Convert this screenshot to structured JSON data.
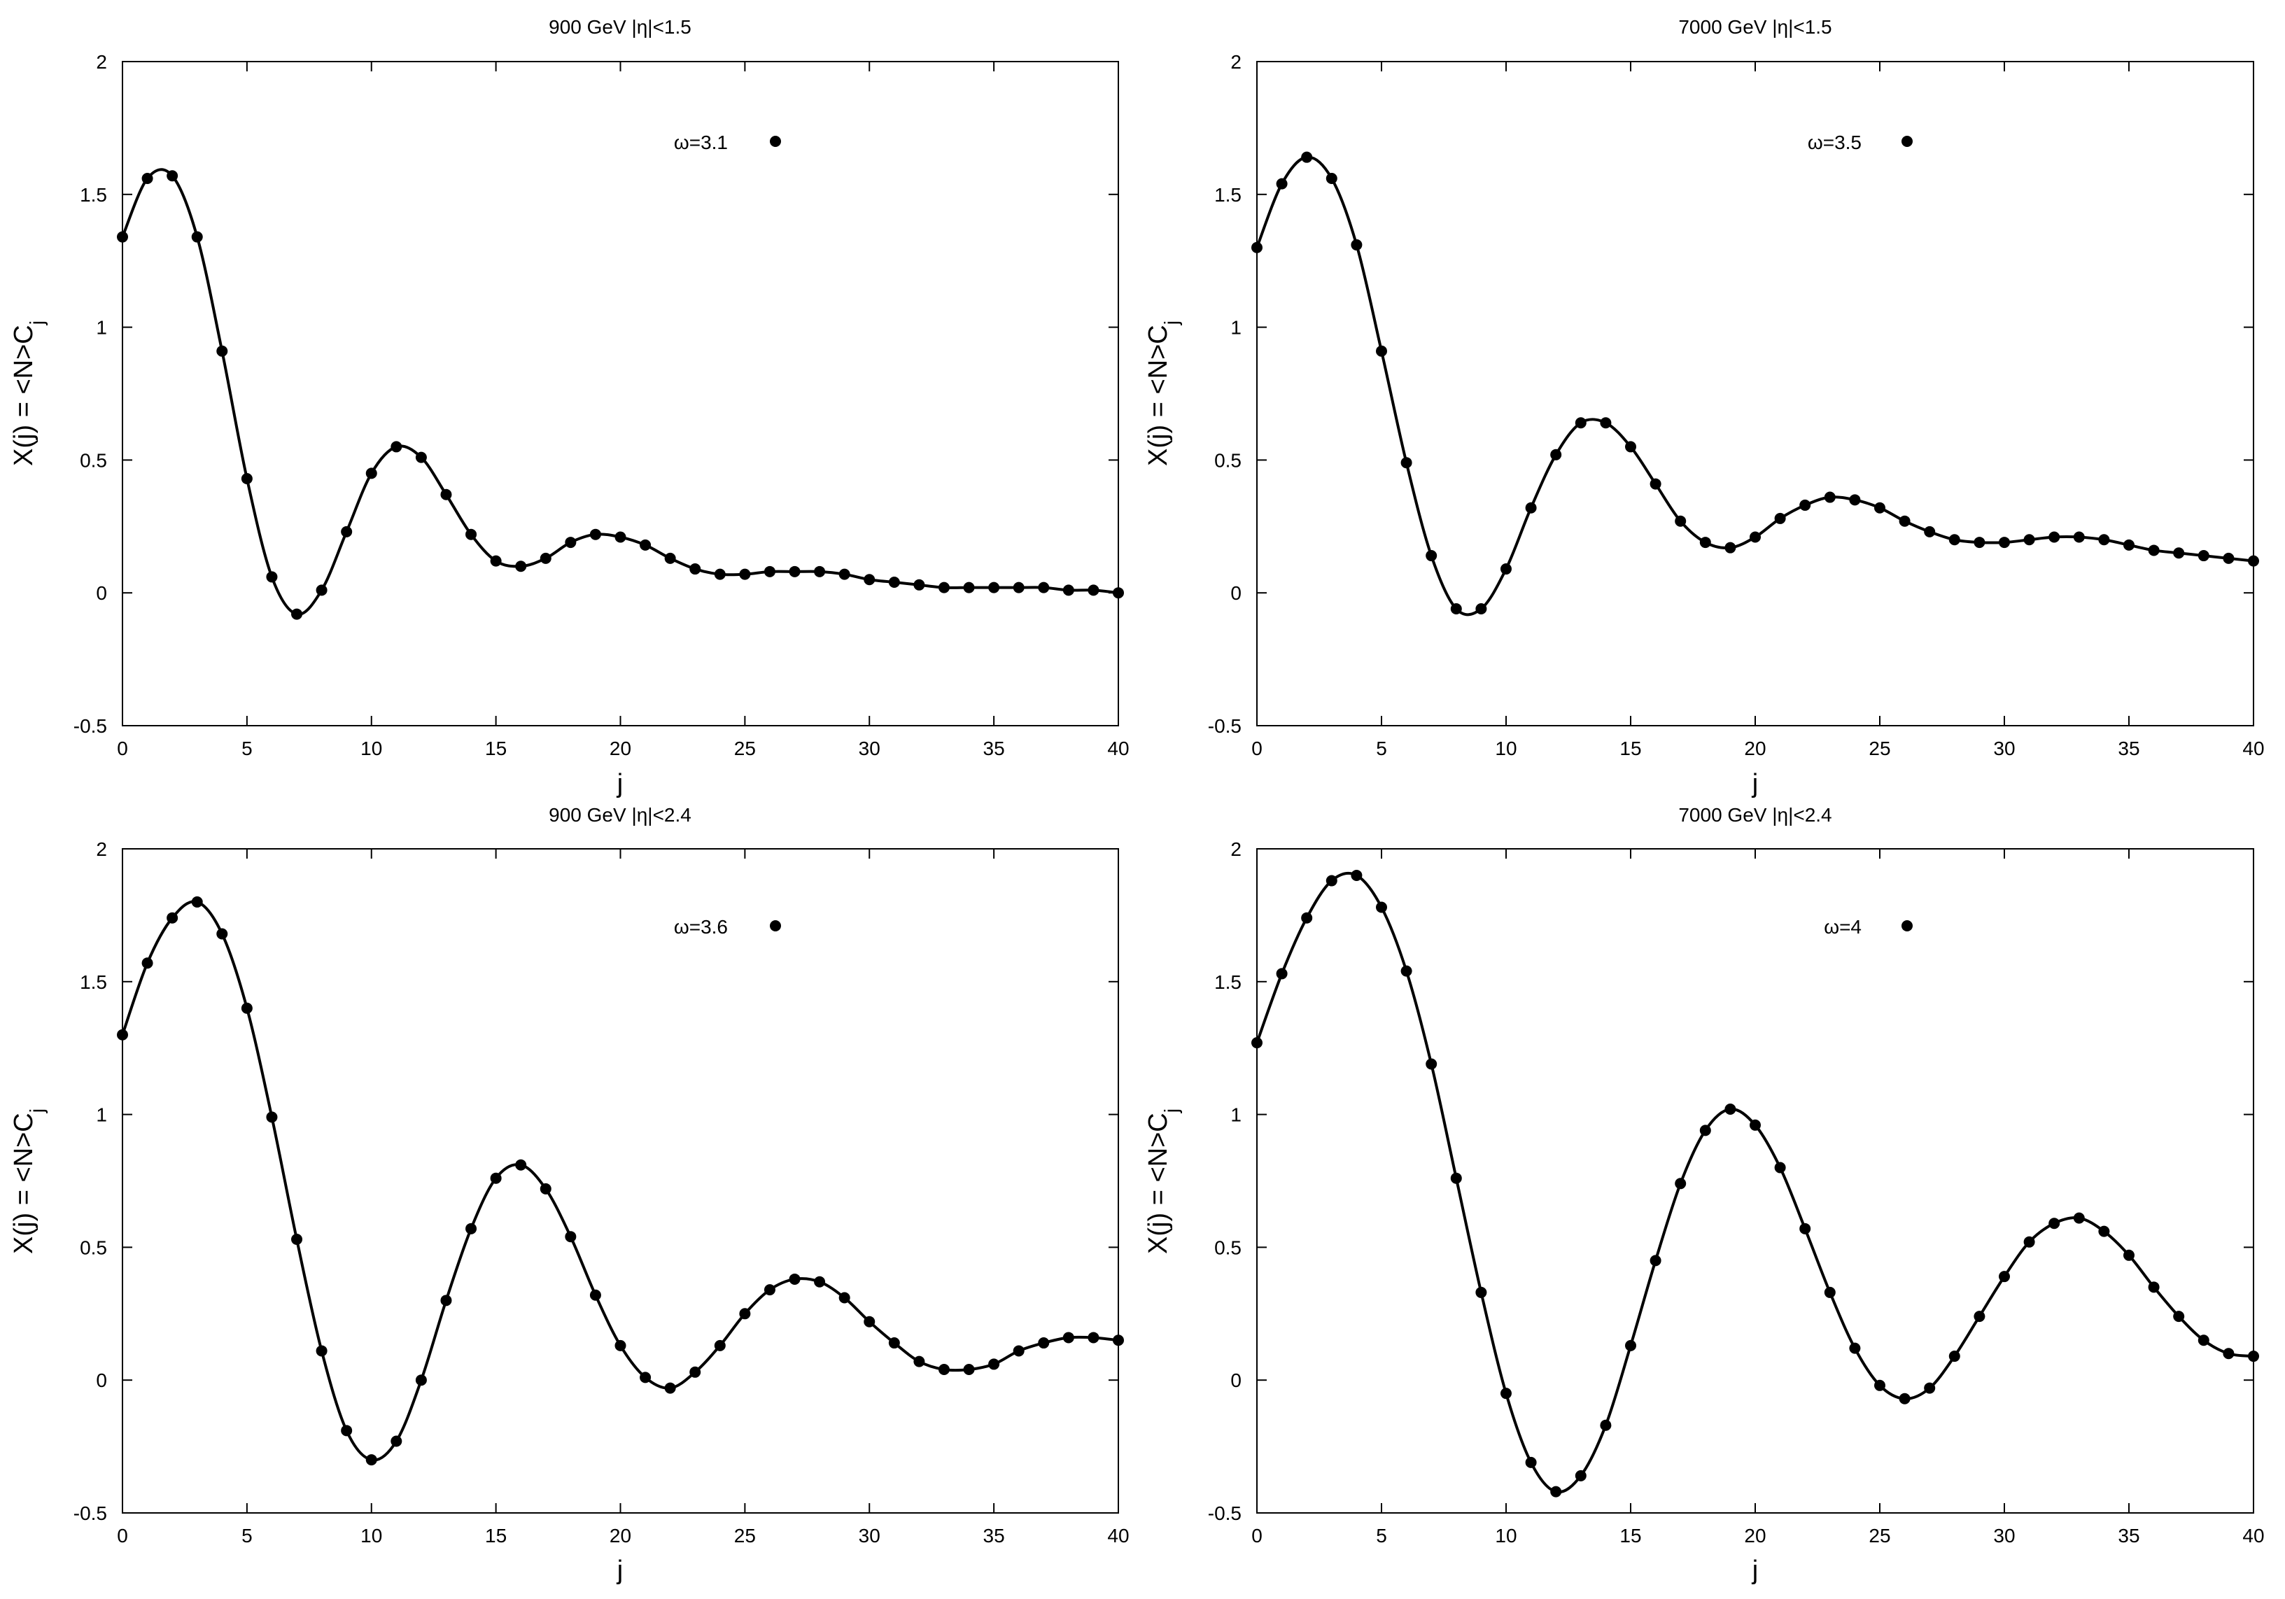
{
  "colors": {
    "curve": "#000000",
    "points": "#000000",
    "background": "#ffffff"
  },
  "chart_data": [
    {
      "type": "line",
      "title": "900 GeV    |η|<1.5",
      "xlabel": "j",
      "ylabel": "X(j) = <N>C_j",
      "xlim": [
        0,
        40
      ],
      "ylim": [
        -0.5,
        2
      ],
      "xticks": [
        "0",
        "5",
        "10",
        "15",
        "20",
        "25",
        "30",
        "35",
        "40"
      ],
      "yticks": [
        "-0.5",
        "0",
        "0.5",
        "1",
        "1.5",
        "2"
      ],
      "grid": false,
      "legend_position": "top-right",
      "series": [
        {
          "name": "ω=3.1",
          "x": [
            0,
            1,
            2,
            3,
            4,
            5,
            6,
            7,
            8,
            9,
            10,
            11,
            12,
            13,
            14,
            15,
            16,
            17,
            18,
            19,
            20,
            21,
            22,
            23,
            24,
            25,
            26,
            27,
            28,
            29,
            30,
            31,
            32,
            33,
            34,
            35,
            36,
            37,
            38,
            39,
            40
          ],
          "values": [
            1.34,
            1.56,
            1.57,
            1.34,
            0.91,
            0.43,
            0.06,
            -0.08,
            0.01,
            0.23,
            0.45,
            0.55,
            0.51,
            0.37,
            0.22,
            0.12,
            0.1,
            0.13,
            0.19,
            0.22,
            0.21,
            0.18,
            0.13,
            0.09,
            0.07,
            0.07,
            0.08,
            0.08,
            0.08,
            0.07,
            0.05,
            0.04,
            0.03,
            0.02,
            0.02,
            0.02,
            0.02,
            0.02,
            0.01,
            0.01,
            0.0
          ]
        }
      ]
    },
    {
      "type": "line",
      "title": "7000 GeV    |η|<1.5",
      "xlabel": "j",
      "ylabel": "X(j) = <N>C_j",
      "xlim": [
        0,
        40
      ],
      "ylim": [
        -0.5,
        2
      ],
      "xticks": [
        "0",
        "5",
        "10",
        "15",
        "20",
        "25",
        "30",
        "35",
        "40"
      ],
      "yticks": [
        "-0.5",
        "0",
        "0.5",
        "1",
        "1.5",
        "2"
      ],
      "grid": false,
      "legend_position": "top-right",
      "series": [
        {
          "name": "ω=3.5",
          "x": [
            0,
            1,
            2,
            3,
            4,
            5,
            6,
            7,
            8,
            9,
            10,
            11,
            12,
            13,
            14,
            15,
            16,
            17,
            18,
            19,
            20,
            21,
            22,
            23,
            24,
            25,
            26,
            27,
            28,
            29,
            30,
            31,
            32,
            33,
            34,
            35,
            36,
            37,
            38,
            39,
            40
          ],
          "values": [
            1.3,
            1.54,
            1.64,
            1.56,
            1.31,
            0.91,
            0.49,
            0.14,
            -0.06,
            -0.06,
            0.09,
            0.32,
            0.52,
            0.64,
            0.64,
            0.55,
            0.41,
            0.27,
            0.19,
            0.17,
            0.21,
            0.28,
            0.33,
            0.36,
            0.35,
            0.32,
            0.27,
            0.23,
            0.2,
            0.19,
            0.19,
            0.2,
            0.21,
            0.21,
            0.2,
            0.18,
            0.16,
            0.15,
            0.14,
            0.13,
            0.12
          ]
        }
      ]
    },
    {
      "type": "line",
      "title": "900 GeV    |η|<2.4",
      "xlabel": "j",
      "ylabel": "X(j) = <N>C_j",
      "xlim": [
        0,
        40
      ],
      "ylim": [
        -0.5,
        2
      ],
      "xticks": [
        "0",
        "5",
        "10",
        "15",
        "20",
        "25",
        "30",
        "35",
        "40"
      ],
      "yticks": [
        "-0.5",
        "0",
        "0.5",
        "1",
        "1.5",
        "2"
      ],
      "grid": false,
      "legend_position": "top-right",
      "series": [
        {
          "name": "ω=3.6",
          "x": [
            0,
            1,
            2,
            3,
            4,
            5,
            6,
            7,
            8,
            9,
            10,
            11,
            12,
            13,
            14,
            15,
            16,
            17,
            18,
            19,
            20,
            21,
            22,
            23,
            24,
            25,
            26,
            27,
            28,
            29,
            30,
            31,
            32,
            33,
            34,
            35,
            36,
            37,
            38,
            39,
            40
          ],
          "values": [
            1.3,
            1.57,
            1.74,
            1.8,
            1.68,
            1.4,
            0.99,
            0.53,
            0.11,
            -0.19,
            -0.3,
            -0.23,
            0.0,
            0.3,
            0.57,
            0.76,
            0.81,
            0.72,
            0.54,
            0.32,
            0.13,
            0.01,
            -0.03,
            0.03,
            0.13,
            0.25,
            0.34,
            0.38,
            0.37,
            0.31,
            0.22,
            0.14,
            0.07,
            0.04,
            0.04,
            0.06,
            0.11,
            0.14,
            0.16,
            0.16,
            0.15
          ]
        }
      ]
    },
    {
      "type": "line",
      "title": "7000 GeV    |η|<2.4",
      "xlabel": "j",
      "ylabel": "X(j) = <N>C_j",
      "xlim": [
        0,
        40
      ],
      "ylim": [
        -0.5,
        2
      ],
      "xticks": [
        "0",
        "5",
        "10",
        "15",
        "20",
        "25",
        "30",
        "35",
        "40"
      ],
      "yticks": [
        "-0.5",
        "0",
        "0.5",
        "1",
        "1.5",
        "2"
      ],
      "grid": false,
      "legend_position": "top-right",
      "series": [
        {
          "name": "ω=4",
          "x": [
            0,
            1,
            2,
            3,
            4,
            5,
            6,
            7,
            8,
            9,
            10,
            11,
            12,
            13,
            14,
            15,
            16,
            17,
            18,
            19,
            20,
            21,
            22,
            23,
            24,
            25,
            26,
            27,
            28,
            29,
            30,
            31,
            32,
            33,
            34,
            35,
            36,
            37,
            38,
            39,
            40
          ],
          "values": [
            1.27,
            1.53,
            1.74,
            1.88,
            1.9,
            1.78,
            1.54,
            1.19,
            0.76,
            0.33,
            -0.05,
            -0.31,
            -0.42,
            -0.36,
            -0.17,
            0.13,
            0.45,
            0.74,
            0.94,
            1.02,
            0.96,
            0.8,
            0.57,
            0.33,
            0.12,
            -0.02,
            -0.07,
            -0.03,
            0.09,
            0.24,
            0.39,
            0.52,
            0.59,
            0.61,
            0.56,
            0.47,
            0.35,
            0.24,
            0.15,
            0.1,
            0.09
          ]
        }
      ]
    }
  ]
}
